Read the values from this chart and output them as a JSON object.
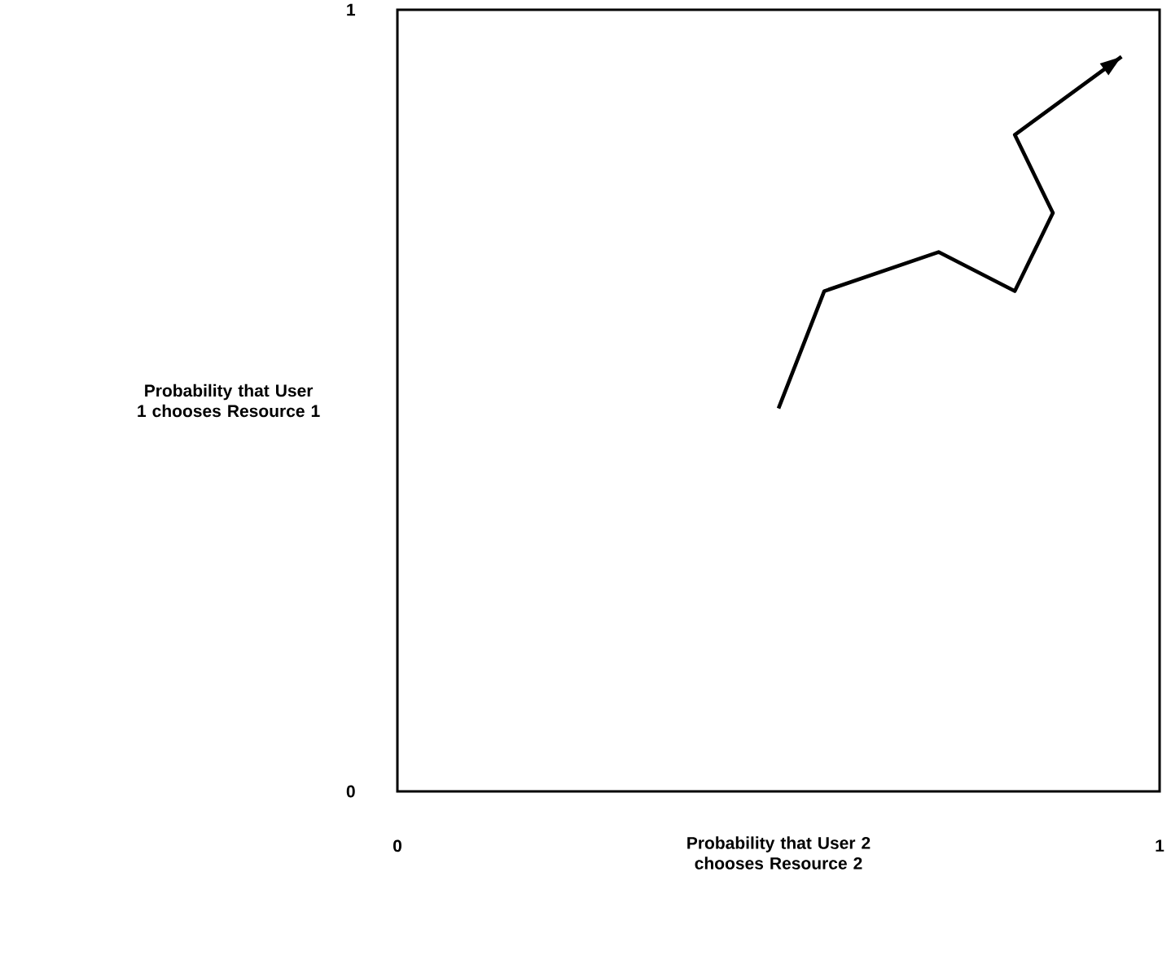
{
  "chart_data": {
    "type": "line",
    "xlabel": "Probability that User 2 chooses Resource 2",
    "ylabel": "Probability that User 1 chooses Resource 1",
    "x": [
      0.5,
      0.56,
      0.71,
      0.81,
      0.86,
      0.81,
      0.95
    ],
    "values": [
      0.49,
      0.64,
      0.69,
      0.64,
      0.74,
      0.84,
      0.94
    ],
    "color": "#000000",
    "xlim": [
      0,
      1
    ],
    "ylim": [
      0,
      1
    ],
    "xticks": [
      0,
      1
    ],
    "yticks": [
      0,
      1
    ]
  }
}
